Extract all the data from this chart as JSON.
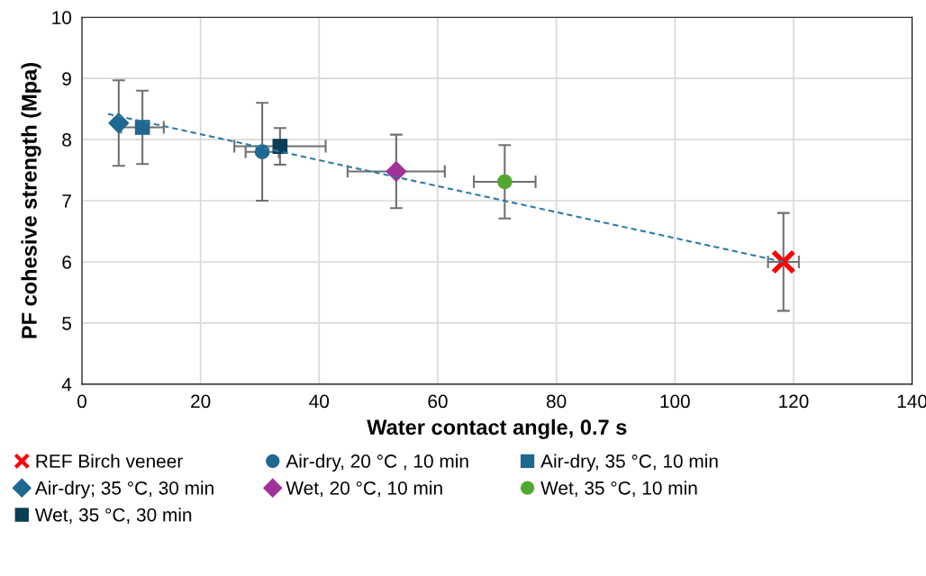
{
  "chart_data": {
    "type": "scatter",
    "xlabel": "Water contact angle, 0.7 s",
    "ylabel": "PF cohesive strength (Mpa)",
    "xlim": [
      0,
      140
    ],
    "xticks": [
      0,
      20,
      40,
      60,
      80,
      100,
      120,
      140
    ],
    "ylim": [
      4,
      10
    ],
    "yticks": [
      4,
      5,
      6,
      7,
      8,
      9,
      10
    ],
    "grid": true,
    "legend": "bottom",
    "series": [
      {
        "name": "REF Birch veneer",
        "color": "#ff0000",
        "marker": "cross",
        "x": [
          118.3
        ],
        "values": [
          6.0
        ],
        "errors": [
          0.8
        ],
        "xerrors": [
          2.6
        ]
      },
      {
        "name": "Air-dry, 20 °C , 10 min",
        "color": "#1f6891",
        "marker": "circle",
        "x": [
          30.4
        ],
        "values": [
          7.8
        ],
        "errors": [
          0.8
        ],
        "xerrors": [
          2.8
        ]
      },
      {
        "name": "Air-dry, 35 °C, 10 min",
        "color": "#1f6891",
        "marker": "square",
        "x": [
          10.2
        ],
        "values": [
          8.2
        ],
        "errors": [
          0.6
        ],
        "xerrors": [
          3.6
        ]
      },
      {
        "name": "Air-dry; 35 °C, 30 min",
        "color": "#1f6891",
        "marker": "diamond",
        "x": [
          6.2
        ],
        "values": [
          8.27
        ],
        "errors": [
          0.7
        ],
        "xerrors": [
          null
        ]
      },
      {
        "name": "Wet, 20 °C, 10 min",
        "color": "#a0309a",
        "marker": "diamond",
        "x": [
          53.0
        ],
        "values": [
          7.48
        ],
        "errors": [
          0.6
        ],
        "xerrors": [
          8.2
        ]
      },
      {
        "name": "Wet, 35 °C, 10 min",
        "color": "#52a82e",
        "marker": "circle",
        "x": [
          71.3
        ],
        "values": [
          7.31
        ],
        "errors": [
          0.6
        ],
        "xerrors": [
          5.2
        ]
      },
      {
        "name": "Wet, 35 °C, 30 min",
        "color": "#0b3d55",
        "marker": "square",
        "x": [
          33.4
        ],
        "values": [
          7.89
        ],
        "errors": [
          0.3
        ],
        "xerrors": [
          7.7
        ]
      },
      {
        "type": "line",
        "color": "#2f7aa3",
        "line_style": "dashed",
        "x": [
          4.4,
          118.3
        ],
        "values": [
          8.42,
          6.0
        ]
      }
    ]
  }
}
